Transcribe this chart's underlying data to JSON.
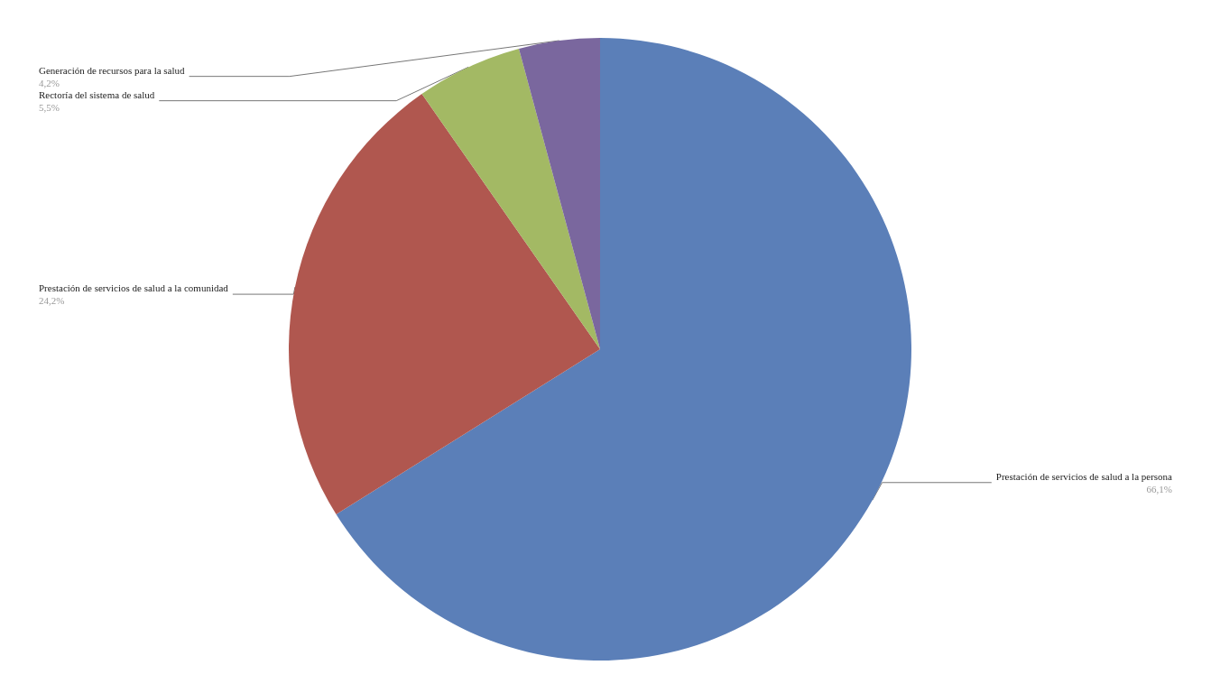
{
  "chart_data": {
    "type": "pie",
    "categories": [
      "Prestación de servicios de salud a la persona",
      "Prestación de servicios de salud a la comunidad",
      "Rectoría del sistema de salud",
      "Generación de recursos para la salud"
    ],
    "values": [
      66.1,
      24.2,
      5.5,
      4.2
    ],
    "colors": [
      "#5b7fb8",
      "#b0574f",
      "#a3b964",
      "#7a679e"
    ],
    "value_labels": [
      "66,1%",
      "24,2%",
      "5,5%",
      "4,2%"
    ]
  }
}
